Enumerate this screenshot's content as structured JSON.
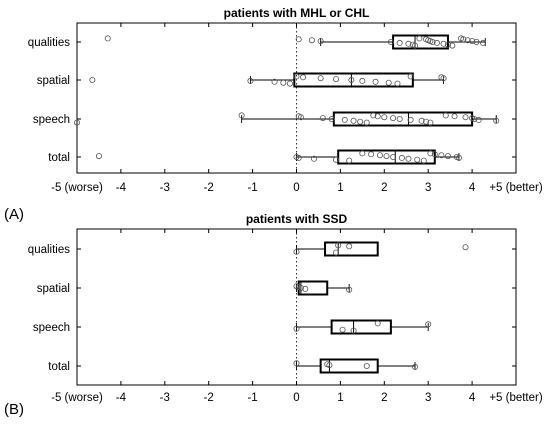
{
  "figure_labels": [
    "(A)",
    "(B)"
  ],
  "chart_data": [
    {
      "type": "box",
      "title": "patients with MHL or CHL",
      "xlim": [
        -5,
        5
      ],
      "x_ticks": [
        {
          "value": -5,
          "label": "-5 (worse)"
        },
        {
          "value": -4,
          "label": "-4"
        },
        {
          "value": -3,
          "label": "-3"
        },
        {
          "value": -2,
          "label": "-2"
        },
        {
          "value": -1,
          "label": "-1"
        },
        {
          "value": 0,
          "label": "0"
        },
        {
          "value": 1,
          "label": "1"
        },
        {
          "value": 2,
          "label": "2"
        },
        {
          "value": 3,
          "label": "3"
        },
        {
          "value": 4,
          "label": "4"
        },
        {
          "value": 5,
          "label": "+5 (better)"
        }
      ],
      "reference_line_x": 0,
      "categories": [
        "qualities",
        "spatial",
        "speech",
        "total"
      ],
      "boxes": [
        {
          "category": "qualities",
          "whisker_low": 0.55,
          "q1": 2.2,
          "median": 2.7,
          "q3": 3.45,
          "whisker_high": 4.3,
          "outliers": [
            -4.3,
            0.05
          ],
          "points": [
            -4.3,
            0.05,
            0.35,
            0.55,
            2.15,
            2.35,
            2.55,
            2.65,
            2.7,
            2.8,
            2.95,
            3.0,
            3.05,
            3.1,
            3.2,
            3.35,
            3.45,
            3.55,
            3.75,
            3.8,
            3.9,
            4.0,
            4.1,
            4.25
          ]
        },
        {
          "category": "spatial",
          "whisker_low": -1.05,
          "q1": -0.05,
          "median": 1.25,
          "q3": 2.65,
          "whisker_high": 3.35,
          "outliers": [
            -4.65
          ],
          "points": [
            -4.65,
            -1.05,
            -0.5,
            -0.3,
            -0.15,
            0.0,
            0.15,
            0.55,
            0.9,
            1.25,
            1.5,
            1.8,
            2.1,
            2.3,
            2.6,
            3.3,
            3.35
          ]
        },
        {
          "category": "speech",
          "whisker_low": -1.25,
          "q1": 0.85,
          "median": 2.55,
          "q3": 4.0,
          "whisker_high": 4.55,
          "outliers": [
            -5.0
          ],
          "points": [
            -5.0,
            -1.25,
            0.05,
            0.1,
            0.6,
            0.8,
            1.1,
            1.3,
            1.45,
            1.6,
            1.75,
            1.85,
            2.0,
            2.2,
            2.35,
            2.6,
            2.85,
            2.95,
            3.05,
            3.4,
            3.6,
            3.85,
            4.0,
            4.05,
            4.15,
            4.55
          ]
        },
        {
          "category": "total",
          "whisker_low": 0.0,
          "q1": 0.95,
          "median": 2.25,
          "q3": 3.15,
          "whisker_high": 3.7,
          "outliers": [
            -4.5
          ],
          "points": [
            -4.5,
            0.0,
            0.05,
            0.4,
            0.9,
            1.2,
            1.5,
            1.7,
            1.9,
            2.05,
            2.2,
            2.4,
            2.55,
            2.75,
            2.9,
            3.05,
            3.15,
            3.3,
            3.45,
            3.65,
            3.7
          ]
        }
      ]
    },
    {
      "type": "box",
      "title": "patients with SSD",
      "xlim": [
        -5,
        5
      ],
      "x_ticks": [
        {
          "value": -5,
          "label": "-5 (worse)"
        },
        {
          "value": -4,
          "label": "-4"
        },
        {
          "value": -3,
          "label": "-3"
        },
        {
          "value": -2,
          "label": "-2"
        },
        {
          "value": -1,
          "label": "-1"
        },
        {
          "value": 0,
          "label": "0"
        },
        {
          "value": 1,
          "label": "1"
        },
        {
          "value": 2,
          "label": "2"
        },
        {
          "value": 3,
          "label": "3"
        },
        {
          "value": 4,
          "label": "4"
        },
        {
          "value": 5,
          "label": "+5 (better)"
        }
      ],
      "reference_line_x": 0,
      "categories": [
        "qualities",
        "spatial",
        "speech",
        "total"
      ],
      "boxes": [
        {
          "category": "qualities",
          "whisker_low": 0.0,
          "q1": 0.65,
          "median": 0.95,
          "q3": 1.85,
          "whisker_high": 1.85,
          "outliers": [
            3.85
          ],
          "points": [
            0.0,
            0.9,
            0.95,
            1.2,
            3.85
          ]
        },
        {
          "category": "spatial",
          "whisker_low": 0.0,
          "q1": 0.05,
          "median": 0.1,
          "q3": 0.7,
          "whisker_high": 1.2,
          "outliers": [],
          "points": [
            0.0,
            0.05,
            0.1,
            0.2,
            1.2
          ]
        },
        {
          "category": "speech",
          "whisker_low": 0.0,
          "q1": 0.8,
          "median": 1.3,
          "q3": 2.15,
          "whisker_high": 3.0,
          "outliers": [],
          "points": [
            0.0,
            1.05,
            1.3,
            1.85,
            3.0
          ]
        },
        {
          "category": "total",
          "whisker_low": 0.0,
          "q1": 0.55,
          "median": 0.75,
          "q3": 1.85,
          "whisker_high": 2.7,
          "outliers": [],
          "points": [
            0.0,
            0.7,
            0.75,
            1.6,
            2.7
          ]
        }
      ]
    }
  ]
}
